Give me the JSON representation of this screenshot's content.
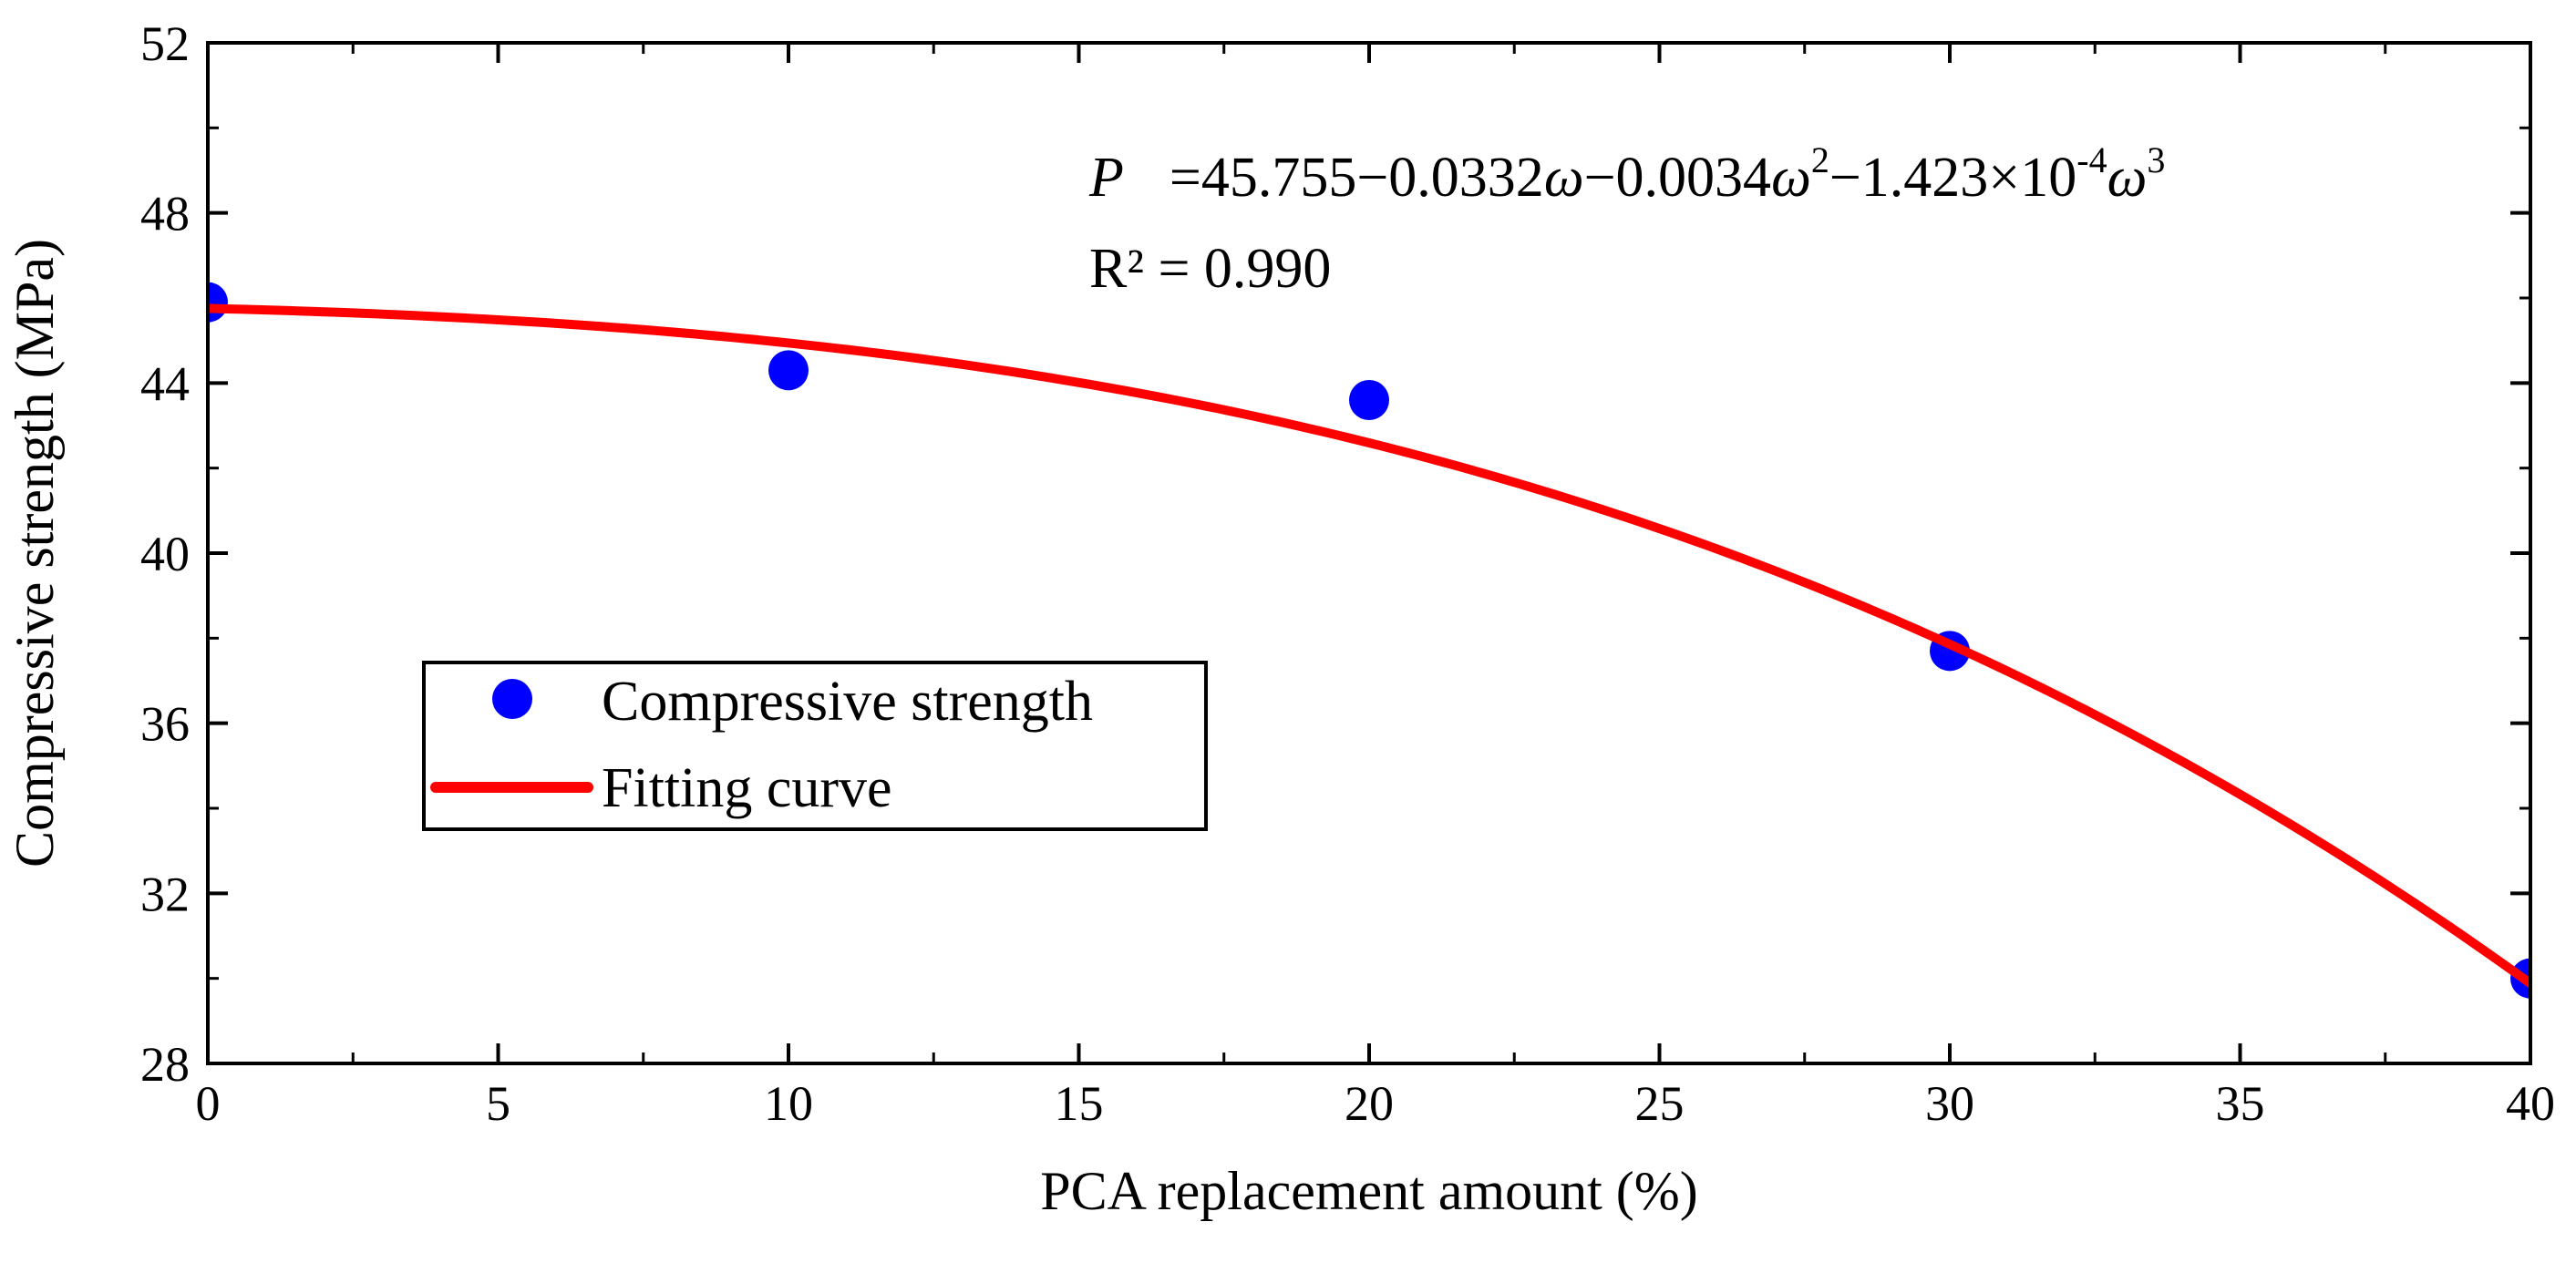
{
  "chart_data": {
    "type": "scatter",
    "title": "",
    "xlabel": "PCA replacement amount (%)",
    "ylabel": "Compressive strength (MPa)",
    "xlim": [
      0,
      40
    ],
    "ylim": [
      28,
      52
    ],
    "x_ticks": [
      0,
      5,
      10,
      15,
      20,
      25,
      30,
      35,
      40
    ],
    "y_ticks": [
      28,
      32,
      36,
      40,
      44,
      48,
      52
    ],
    "grid": false,
    "legend_position": "center-left",
    "series": [
      {
        "name": "Compressive strength",
        "kind": "scatter",
        "color": "#0000ff",
        "x": [
          0,
          10,
          20,
          30,
          40
        ],
        "y": [
          45.9,
          44.3,
          43.6,
          37.7,
          30.0
        ]
      },
      {
        "name": "Fitting curve",
        "kind": "line",
        "color": "#ff0000",
        "coefficients": [
          45.755,
          -0.0332,
          -0.0034,
          -0.0001423
        ]
      }
    ],
    "annotations": {
      "equation": {
        "P": "P",
        "eq": "=45.755−0.0332",
        "w1": "ω",
        "mid1": "−0.0034",
        "w2": "ω",
        "exp2": "2",
        "mid2": "−1.423×10",
        "exp_neg4": "-4",
        "w3": "ω",
        "exp3": "3"
      },
      "r_squared": "R² = 0.990"
    }
  }
}
